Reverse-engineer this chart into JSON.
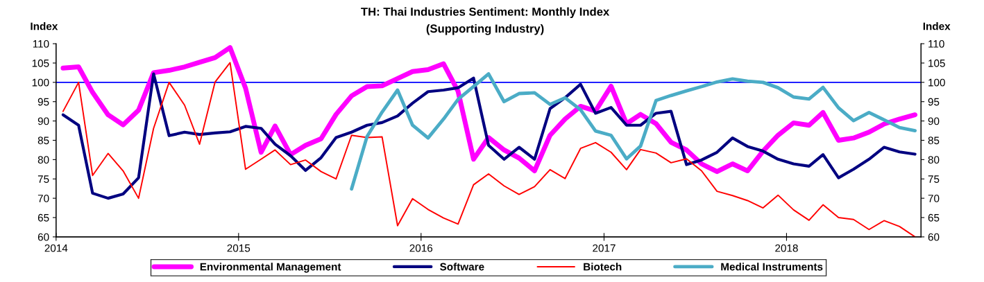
{
  "chart_data": {
    "type": "line",
    "title": "TH: Thai Industries Sentiment: Monthly Index",
    "subtitle": "(Supporting Industry)",
    "ylabel": "Index",
    "y2label": "Index",
    "x": [
      "2014-01-15",
      "2014-02-15",
      "2014-03-15",
      "2014-04-15",
      "2014-05-15",
      "2014-06-15",
      "2014-07-15",
      "2014-08-15",
      "2014-09-15",
      "2014-10-15",
      "2014-11-15",
      "2014-12-15",
      "2015-01-15",
      "2015-02-15",
      "2015-03-15",
      "2015-04-15",
      "2015-05-15",
      "2015-06-15",
      "2015-07-15",
      "2015-08-15",
      "2015-09-15",
      "2015-10-15",
      "2015-11-15",
      "2015-12-15",
      "2016-01-15",
      "2016-02-15",
      "2016-03-15",
      "2016-04-15",
      "2016-05-15",
      "2016-06-15",
      "2016-07-15",
      "2016-08-15",
      "2016-09-15",
      "2016-10-15",
      "2016-11-15",
      "2016-12-15",
      "2017-01-15",
      "2017-02-15",
      "2017-03-15",
      "2017-04-15",
      "2017-05-15",
      "2017-06-15",
      "2017-07-15",
      "2017-08-15",
      "2017-09-15",
      "2017-10-15",
      "2017-11-15",
      "2017-12-15",
      "2018-01-15",
      "2018-02-15",
      "2018-03-15",
      "2018-04-15",
      "2018-05-15",
      "2018-06-15",
      "2018-07-15",
      "2018-08-15",
      "2018-09-15"
    ],
    "series": [
      {
        "name": "Environmental Management",
        "color": "#ff00ff",
        "values": [
          103.7,
          104.0,
          97.4,
          91.6,
          89.0,
          92.8,
          102.5,
          103.1,
          104.0,
          105.2,
          106.4,
          109.0,
          98.5,
          81.9,
          88.7,
          81.3,
          83.7,
          85.4,
          91.7,
          96.5,
          98.9,
          99.1,
          101.0,
          102.8,
          103.3,
          104.8,
          97.7,
          80.1,
          85.7,
          82.5,
          80.4,
          77.1,
          86.3,
          90.5,
          93.8,
          92.6,
          99.0,
          89.3,
          91.7,
          89.3,
          84.5,
          82.5,
          78.9,
          76.9,
          78.9,
          77.1,
          82.2,
          86.3,
          89.5,
          88.9,
          92.2,
          85.0,
          85.6,
          87.1,
          89.2,
          90.5,
          91.6
        ]
      },
      {
        "name": "Software",
        "color": "#000080",
        "values": [
          91.6,
          88.9,
          71.3,
          70.0,
          71.1,
          75.3,
          102.2,
          86.2,
          87.1,
          86.5,
          86.9,
          87.2,
          88.6,
          88.1,
          84.0,
          81.0,
          77.2,
          80.5,
          85.7,
          87.1,
          88.9,
          89.6,
          91.3,
          94.6,
          97.6,
          98.0,
          98.6,
          101.1,
          83.7,
          80.1,
          83.2,
          80.1,
          93.2,
          96.0,
          99.5,
          92.0,
          93.5,
          88.9,
          88.9,
          92.0,
          92.5,
          78.7,
          79.9,
          81.9,
          85.6,
          83.4,
          82.2,
          80.1,
          78.9,
          78.3,
          81.3,
          75.3,
          77.5,
          80.1,
          83.2,
          82.0,
          81.4
        ]
      },
      {
        "name": "Biotech",
        "color": "#ff0000",
        "values": [
          92.5,
          100.0,
          75.9,
          81.6,
          77.1,
          70.0,
          88.1,
          100.0,
          94.1,
          84.0,
          100.1,
          105.1,
          77.5,
          80.1,
          82.5,
          78.7,
          79.9,
          76.9,
          75.0,
          86.3,
          85.7,
          85.9,
          62.9,
          69.9,
          67.1,
          64.9,
          63.3,
          73.5,
          76.3,
          73.2,
          71.0,
          73.0,
          77.4,
          75.1,
          82.9,
          84.4,
          81.9,
          77.4,
          82.6,
          81.7,
          79.2,
          80.2,
          77.1,
          71.8,
          70.7,
          69.4,
          67.5,
          70.8,
          67.0,
          64.3,
          68.3,
          65.0,
          64.5,
          61.9,
          64.2,
          62.7,
          60.0
        ]
      },
      {
        "name": "Medical Instruments",
        "color": "#4bacc6",
        "values": [
          null,
          null,
          null,
          null,
          null,
          null,
          null,
          null,
          null,
          null,
          null,
          null,
          null,
          null,
          null,
          null,
          null,
          null,
          null,
          72.4,
          86.0,
          92.3,
          98.0,
          88.9,
          85.6,
          90.5,
          95.6,
          98.9,
          102.2,
          95.0,
          97.1,
          97.3,
          94.3,
          96.0,
          92.9,
          87.4,
          86.3,
          80.2,
          83.5,
          95.3,
          96.6,
          97.8,
          98.9,
          100.1,
          100.9,
          100.3,
          100.0,
          98.6,
          96.2,
          95.7,
          98.7,
          93.4,
          90.1,
          92.2,
          90.3,
          88.3,
          87.5
        ]
      }
    ],
    "xlim": [
      "2014-01-01",
      "2018-09-27"
    ],
    "xticks": [
      "2014",
      "2015",
      "2016",
      "2017",
      "2018"
    ],
    "ylim": [
      60,
      110
    ],
    "yticks": [
      60,
      65,
      70,
      75,
      80,
      85,
      90,
      95,
      100,
      105,
      110
    ],
    "y2lim": [
      60,
      110
    ],
    "y2ticks": [
      60,
      65,
      70,
      75,
      80,
      85,
      90,
      95,
      100,
      105,
      110
    ],
    "ref_lines": [
      {
        "axis": "y",
        "value": 100,
        "color": "#0000ff",
        "line_style": "solid"
      }
    ],
    "legend": "bottom",
    "grid": false,
    "marker": "none",
    "line_style": "solid"
  }
}
